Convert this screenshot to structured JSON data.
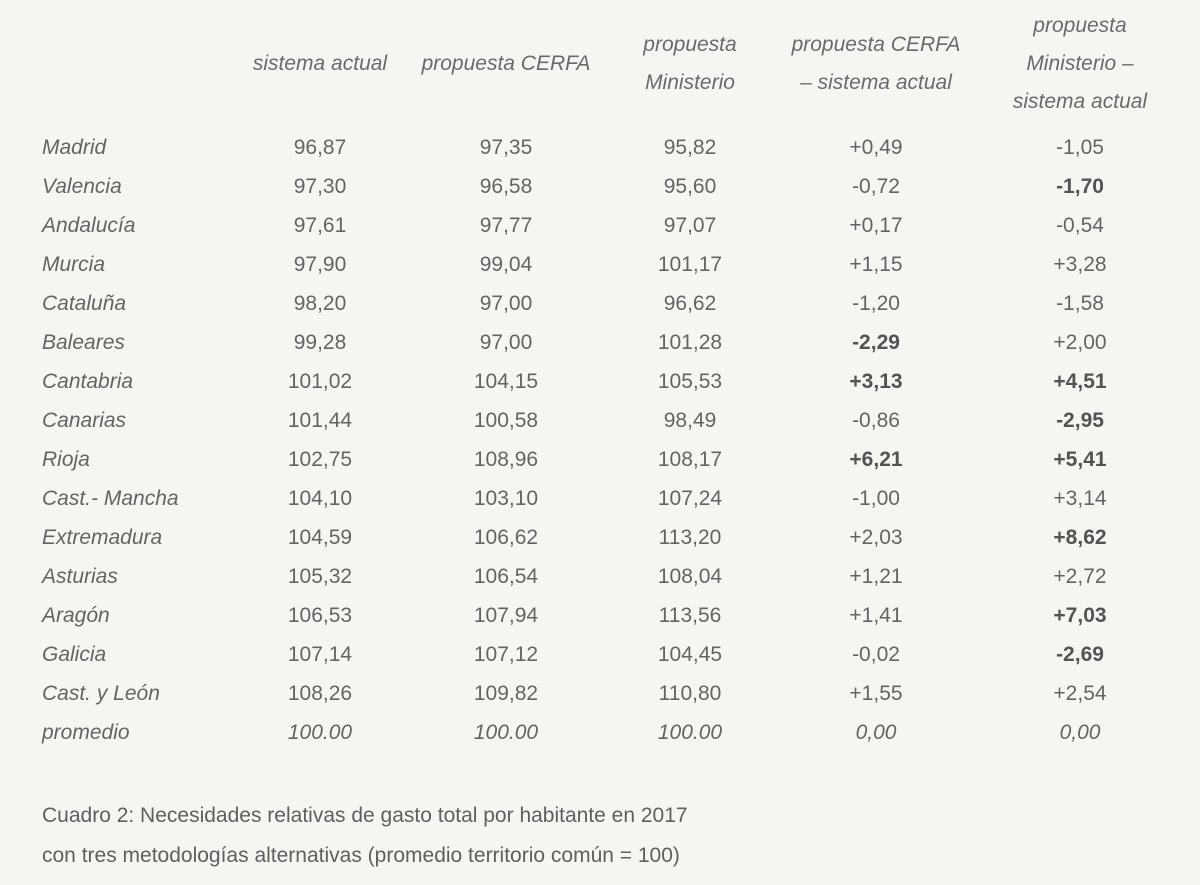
{
  "colors": {
    "background": "#f5f5f2",
    "text": "#646464",
    "bold_text": "#555351"
  },
  "caption": {
    "line1": "Cuadro 2: Necesidades relativas de gasto total por habitante en 2017",
    "line2": "con tres metodologías alternativas (promedio territorio común = 100)"
  },
  "chart_data": {
    "type": "table",
    "title": "Cuadro 2: Necesidades relativas de gasto total por habitante en 2017 con tres metodologías alternativas (promedio territorio común = 100)",
    "columns": [
      "",
      "sistema actual",
      "propuesta CERFA",
      "propuesta Ministerio",
      "propuesta CERFA – sistema actual",
      "propuesta Ministerio – sistema actual"
    ],
    "header_display": [
      "",
      "sistema actual",
      "propuesta CERFA",
      "propuesta\nMinisterio",
      "propuesta CERFA\n– sistema actual",
      "propuesta\nMinisterio –\nsistema actual"
    ],
    "rows": [
      {
        "name": "Madrid",
        "values": [
          "96,87",
          "97,35",
          "95,82",
          "+0,49",
          "-1,05"
        ],
        "bold": [],
        "italic": false
      },
      {
        "name": "Valencia",
        "values": [
          "97,30",
          "96,58",
          "95,60",
          "-0,72",
          "-1,70"
        ],
        "bold": [
          4
        ],
        "italic": false
      },
      {
        "name": "Andalucía",
        "values": [
          "97,61",
          "97,77",
          "97,07",
          "+0,17",
          "-0,54"
        ],
        "bold": [],
        "italic": false
      },
      {
        "name": "Murcia",
        "values": [
          "97,90",
          "99,04",
          "101,17",
          "+1,15",
          "+3,28"
        ],
        "bold": [],
        "italic": false
      },
      {
        "name": "Cataluña",
        "values": [
          "98,20",
          "97,00",
          "96,62",
          "-1,20",
          "-1,58"
        ],
        "bold": [],
        "italic": false
      },
      {
        "name": "Baleares",
        "values": [
          "99,28",
          "97,00",
          "101,28",
          "-2,29",
          "+2,00"
        ],
        "bold": [
          3
        ],
        "italic": false
      },
      {
        "name": "Cantabria",
        "values": [
          "101,02",
          "104,15",
          "105,53",
          "+3,13",
          "+4,51"
        ],
        "bold": [
          3,
          4
        ],
        "italic": false
      },
      {
        "name": "Canarias",
        "values": [
          "101,44",
          "100,58",
          "98,49",
          "-0,86",
          "-2,95"
        ],
        "bold": [
          4
        ],
        "italic": false
      },
      {
        "name": "Rioja",
        "values": [
          "102,75",
          "108,96",
          "108,17",
          "+6,21",
          "+5,41"
        ],
        "bold": [
          3,
          4
        ],
        "italic": false
      },
      {
        "name": "Cast.- Mancha",
        "values": [
          "104,10",
          "103,10",
          "107,24",
          "-1,00",
          "+3,14"
        ],
        "bold": [],
        "italic": false
      },
      {
        "name": "Extremadura",
        "values": [
          "104,59",
          "106,62",
          "113,20",
          "+2,03",
          "+8,62"
        ],
        "bold": [
          4
        ],
        "italic": false
      },
      {
        "name": "Asturias",
        "values": [
          "105,32",
          "106,54",
          "108,04",
          "+1,21",
          "+2,72"
        ],
        "bold": [],
        "italic": false
      },
      {
        "name": "Aragón",
        "values": [
          "106,53",
          "107,94",
          "113,56",
          "+1,41",
          "+7,03"
        ],
        "bold": [
          4
        ],
        "italic": false
      },
      {
        "name": "Galicia",
        "values": [
          "107,14",
          "107,12",
          "104,45",
          "-0,02",
          "-2,69"
        ],
        "bold": [
          4
        ],
        "italic": false
      },
      {
        "name": "Cast. y León",
        "values": [
          "108,26",
          "109,82",
          "110,80",
          "+1,55",
          "+2,54"
        ],
        "bold": [],
        "italic": false
      },
      {
        "name": "promedio",
        "values": [
          "100.00",
          "100.00",
          "100.00",
          "0,00",
          "0,00"
        ],
        "bold": [],
        "italic": true
      }
    ]
  }
}
